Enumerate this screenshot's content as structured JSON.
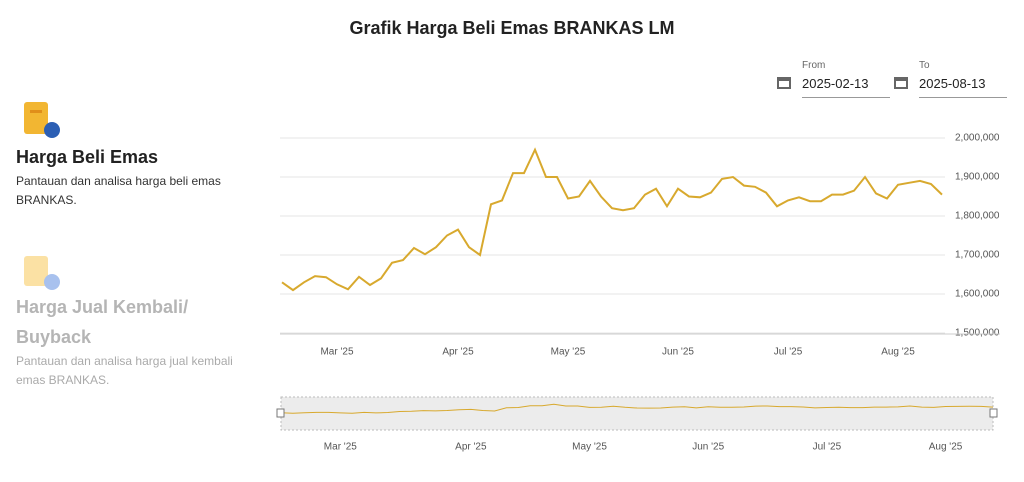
{
  "header": {
    "title": "Grafik Harga Beli Emas BRANKAS LM"
  },
  "sidebar": {
    "items": [
      {
        "title": "Harga Beli Emas",
        "description": "Pantauan dan analisa harga beli emas BRANKAS."
      },
      {
        "title": "Harga Jual Kembali/ Buyback",
        "description": "Pantauan dan analisa harga jual kembali emas BRANKAS."
      }
    ]
  },
  "date_range": {
    "from_label": "From",
    "from": "2025-02-13",
    "to_label": "To",
    "to": "2025-08-13"
  },
  "chart_data": {
    "type": "line",
    "color": "#d8a92e",
    "grid": true,
    "categories": [
      null,
      null,
      null,
      null,
      null,
      "Mar '25",
      null,
      null,
      null,
      null,
      null,
      null,
      null,
      null,
      null,
      null,
      "Apr '25",
      null,
      null,
      null,
      null,
      null,
      null,
      null,
      null,
      null,
      "May '25",
      null,
      null,
      null,
      null,
      null,
      null,
      null,
      null,
      null,
      "Jun '25",
      null,
      null,
      null,
      null,
      null,
      null,
      null,
      null,
      null,
      "Jul '25",
      null,
      null,
      null,
      null,
      null,
      null,
      null,
      null,
      null,
      "Aug '25",
      null,
      null,
      null,
      null
    ],
    "values": [
      1630000,
      1610000,
      1630000,
      1646000,
      1643000,
      1625000,
      1612000,
      1644000,
      1623000,
      1640000,
      1680000,
      1687000,
      1718000,
      1702000,
      1720000,
      1750000,
      1765000,
      1720000,
      1700000,
      1830000,
      1840000,
      1910000,
      1910000,
      1970000,
      1900000,
      1900000,
      1845000,
      1850000,
      1890000,
      1850000,
      1820000,
      1815000,
      1820000,
      1855000,
      1870000,
      1825000,
      1870000,
      1850000,
      1848000,
      1860000,
      1895000,
      1900000,
      1878000,
      1875000,
      1860000,
      1825000,
      1840000,
      1848000,
      1838000,
      1838000,
      1855000,
      1855000,
      1865000,
      1900000,
      1858000,
      1845000,
      1880000,
      1885000,
      1890000,
      1882000,
      1855000
    ],
    "ylim": [
      1500000,
      2000000
    ],
    "yticks": [
      {
        "value": 1500000,
        "label": "1,500,000"
      },
      {
        "value": 1600000,
        "label": "1,600,000"
      },
      {
        "value": 1700000,
        "label": "1,700,000"
      },
      {
        "value": 1800000,
        "label": "1,800,000"
      },
      {
        "value": 1900000,
        "label": "1,900,000"
      },
      {
        "value": 2000000,
        "label": "2,000,000"
      }
    ]
  }
}
